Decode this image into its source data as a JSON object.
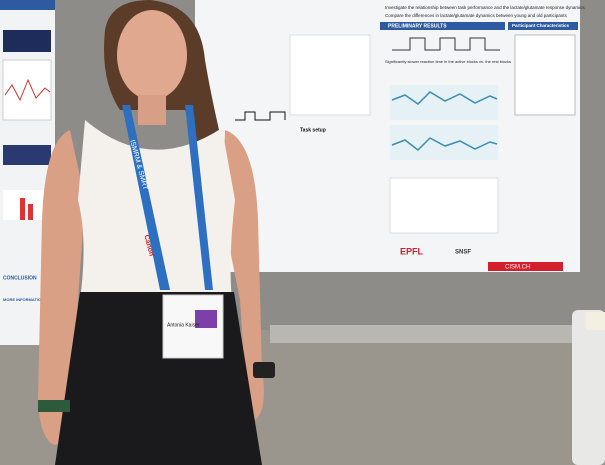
{
  "poster": {
    "objectives": [
      "Investigate the relationship between task performance and the lactate/glutamate response dynamics",
      "Compare the differences in lactate/glutamate dynamics between young and old participants"
    ],
    "results_header": "PRELIMINARY RESULTS",
    "result_note": "Significantly slower reaction time in the active blocks vs. the rest blocks",
    "task_setup": "Task setup",
    "participants_header": "Participant Characteristics",
    "logos": [
      "EPFL",
      "SNSF",
      "CISM.CH"
    ]
  },
  "left_poster": {
    "conclusion": "CONCLUSION",
    "more_info": "MORE INFORMATION"
  },
  "lanyard": {
    "text": "ISMRM & SMRT",
    "sponsor": "Canon"
  },
  "badge": {
    "name": "Antonia Kaiser"
  }
}
